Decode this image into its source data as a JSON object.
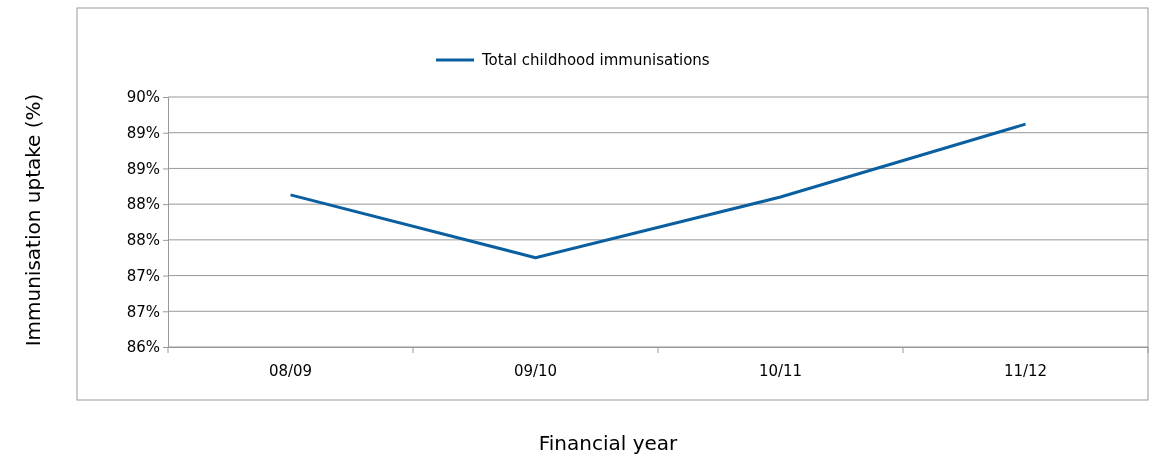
{
  "chart_data": {
    "type": "line",
    "xlabel": "Financial year",
    "ylabel": "Immunisation uptake (%)",
    "categories": [
      "08/09",
      "09/10",
      "10/11",
      "11/12"
    ],
    "series": [
      {
        "name": "Total childhood immunisations",
        "color": "#0a5fa0",
        "values": [
          88.13,
          87.25,
          88.1,
          89.12
        ]
      }
    ],
    "ylim": [
      86,
      89.5
    ],
    "yticks": [
      {
        "value": 86,
        "label": "86%"
      },
      {
        "value": 86.5,
        "label": "87%"
      },
      {
        "value": 87,
        "label": "87%"
      },
      {
        "value": 87.5,
        "label": "88%"
      },
      {
        "value": 88,
        "label": "88%"
      },
      {
        "value": 88.5,
        "label": "89%"
      },
      {
        "value": 89,
        "label": "89%"
      },
      {
        "value": 89.5,
        "label": "90%"
      }
    ],
    "grid": "y",
    "legend": "top",
    "marker": "none",
    "line_style": "solid"
  }
}
